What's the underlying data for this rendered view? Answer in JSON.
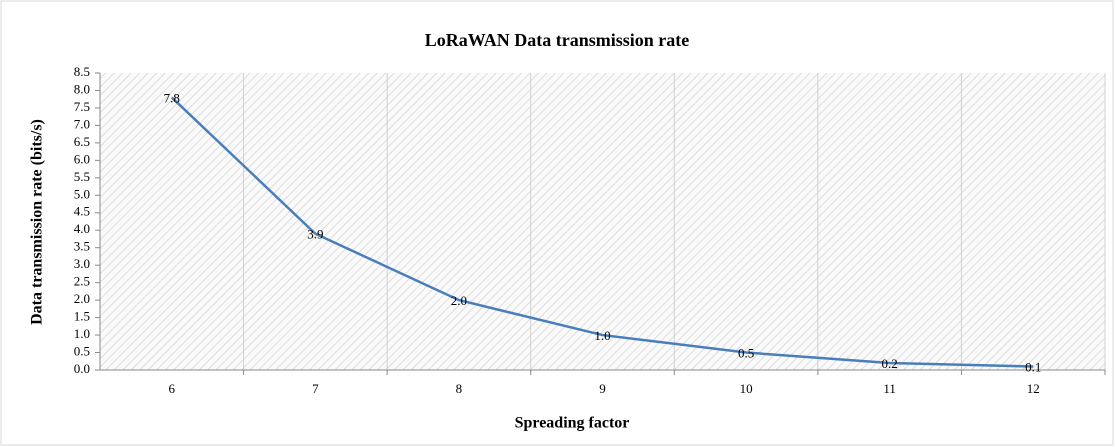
{
  "chart_data": {
    "type": "line",
    "title": "LoRaWAN Data transmission rate",
    "x_label": "Spreading  factor",
    "y_label": "Data transmission  rate  (bits/s)",
    "categories": [
      "6",
      "7",
      "8",
      "9",
      "10",
      "11",
      "12"
    ],
    "series": [
      {
        "name": "Data transmission rate",
        "color": "#4a7ebb",
        "values": [
          7.8,
          3.9,
          2.0,
          1.0,
          0.5,
          0.2,
          0.1
        ],
        "value_labels": [
          "7.8",
          "3.9",
          "2.0",
          "1.0",
          "0.5",
          "0.2",
          "0.1"
        ]
      }
    ],
    "ylim": [
      0,
      8.5
    ],
    "yticks": [
      {
        "value": 0,
        "label": "0.0"
      },
      0.5,
      {
        "value": 1,
        "label": "1.0"
      },
      1.5,
      {
        "value": 2,
        "label": "2.0"
      },
      2.5,
      {
        "value": 3,
        "label": "3.0"
      },
      3.5,
      {
        "value": 4,
        "label": "4.0"
      },
      4.5,
      {
        "value": 5,
        "label": "5.0"
      },
      5.5,
      {
        "value": 6,
        "label": "6.0"
      },
      6.5,
      {
        "value": 7,
        "label": "7.0"
      },
      7.5,
      {
        "value": 8,
        "label": "8.0"
      },
      8.5
    ],
    "grid": false
  }
}
